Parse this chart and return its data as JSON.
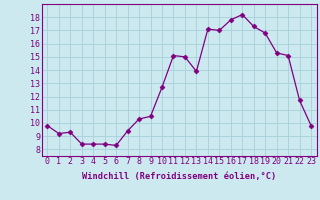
{
  "x": [
    0,
    1,
    2,
    3,
    4,
    5,
    6,
    7,
    8,
    9,
    10,
    11,
    12,
    13,
    14,
    15,
    16,
    17,
    18,
    19,
    20,
    21,
    22,
    23
  ],
  "y": [
    9.8,
    9.2,
    9.3,
    8.4,
    8.4,
    8.4,
    8.3,
    9.4,
    10.3,
    10.5,
    12.7,
    15.1,
    15.0,
    13.9,
    17.1,
    17.0,
    17.8,
    18.2,
    17.3,
    16.8,
    15.3,
    15.1,
    11.7,
    9.8
  ],
  "line_color": "#800080",
  "marker": "D",
  "marker_size": 2.5,
  "bg_color": "#cce9f0",
  "grid_color": "#aad4dc",
  "xlabel": "Windchill (Refroidissement éolien,°C)",
  "ylabel_ticks": [
    8,
    9,
    10,
    11,
    12,
    13,
    14,
    15,
    16,
    17,
    18
  ],
  "ylim": [
    7.5,
    19.0
  ],
  "xlim": [
    -0.5,
    23.5
  ],
  "tick_fontsize": 6.0,
  "xlabel_fontsize": 6.2
}
